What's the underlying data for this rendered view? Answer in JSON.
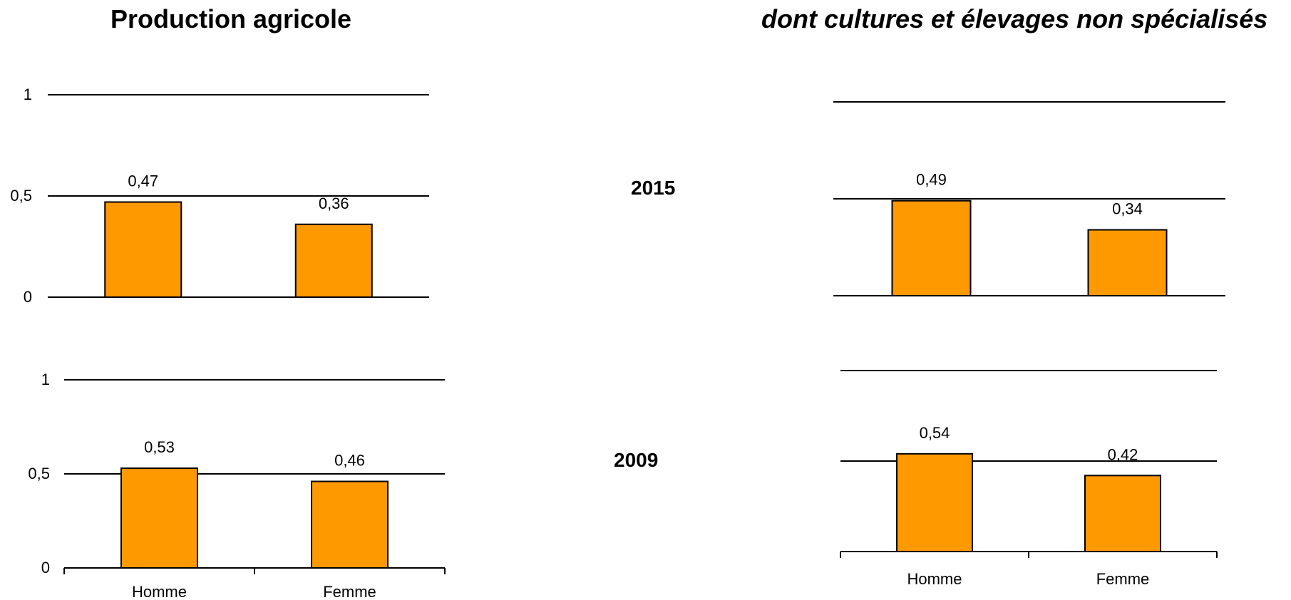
{
  "titles": {
    "left": "Production agricole",
    "right": "dont cultures et élevages non spécialisés"
  },
  "years": [
    "2015",
    "2009"
  ],
  "colors": {
    "bar": "#ff9900",
    "stroke": "#000000"
  },
  "chart_data": [
    {
      "type": "bar",
      "title": "Production agricole",
      "subtitle": "2015",
      "categories": [
        "Homme",
        "Femme"
      ],
      "values": [
        0.47,
        0.36
      ],
      "data_labels": [
        "0,47",
        "0,36"
      ],
      "yticks": [
        "0",
        "0,5",
        "1"
      ],
      "ylim": [
        0,
        1
      ],
      "grid": true
    },
    {
      "type": "bar",
      "title": "Production agricole",
      "subtitle": "2009",
      "categories": [
        "Homme",
        "Femme"
      ],
      "values": [
        0.53,
        0.46
      ],
      "data_labels": [
        "0,53",
        "0,46"
      ],
      "yticks": [
        "0",
        "0,5",
        "1"
      ],
      "ylim": [
        0,
        1
      ],
      "grid": true
    },
    {
      "type": "bar",
      "title": "dont cultures et élevages non spécialisés",
      "subtitle": "2015",
      "categories": [
        "Homme",
        "Femme"
      ],
      "values": [
        0.49,
        0.34
      ],
      "data_labels": [
        "0,49",
        "0,34"
      ],
      "ylim": [
        0,
        1
      ],
      "grid": true
    },
    {
      "type": "bar",
      "title": "dont cultures et élevages non spécialisés",
      "subtitle": "2009",
      "categories": [
        "Homme",
        "Femme"
      ],
      "values": [
        0.54,
        0.42
      ],
      "data_labels": [
        "0,54",
        "0,42"
      ],
      "ylim": [
        0,
        1
      ],
      "grid": true
    }
  ]
}
